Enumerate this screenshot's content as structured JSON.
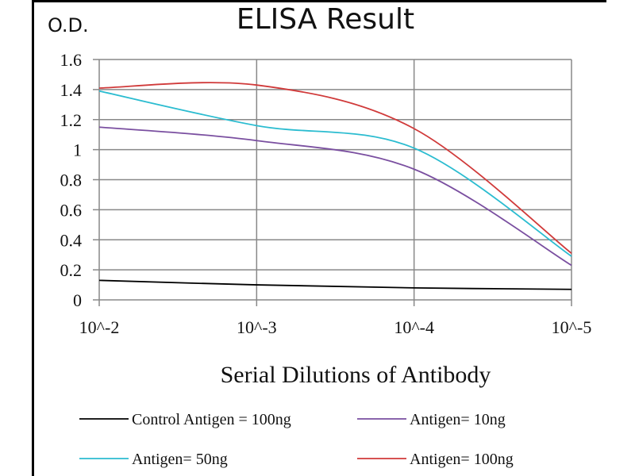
{
  "chart_data": {
    "type": "line",
    "title": "ELISA Result",
    "ylabel": "O.D.",
    "xlabel": "Serial Dilutions  of Antibody",
    "categories": [
      "10^-2",
      "10^-3",
      "10^-4",
      "10^-5"
    ],
    "ylim": [
      0,
      1.6
    ],
    "yticks": [
      "0",
      "0.2",
      "0.4",
      "0.6",
      "0.8",
      "1",
      "1.2",
      "1.4",
      "1.6"
    ],
    "grid": true,
    "legend_placement": "bottom",
    "series": [
      {
        "name": "Control Antigen = 100ng",
        "color": "#000000",
        "values": [
          0.13,
          0.1,
          0.08,
          0.07
        ]
      },
      {
        "name": "Antigen= 10ng",
        "color": "#7a4fa0",
        "values": [
          1.15,
          1.06,
          0.87,
          0.23
        ]
      },
      {
        "name": "Antigen= 50ng",
        "color": "#2bbcd0",
        "values": [
          1.39,
          1.16,
          1.01,
          0.29
        ]
      },
      {
        "name": "Antigen= 100ng",
        "color": "#d03a3a",
        "values": [
          1.41,
          1.43,
          1.14,
          0.31
        ]
      }
    ]
  }
}
